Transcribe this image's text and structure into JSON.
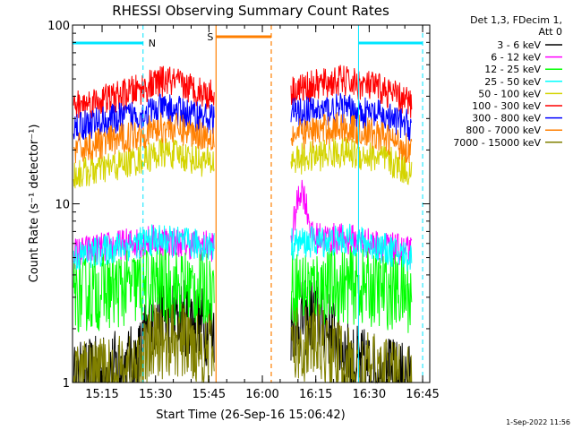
{
  "chart_data": {
    "type": "line",
    "title": "RHESSI Observing Summary Count Rates",
    "xlabel": "Start Time (26-Sep-16 15:06:42)",
    "ylabel": "Count Rate (s⁻¹ detector⁻¹)",
    "y_scale": "log",
    "ylim": [
      1,
      100
    ],
    "xlim_minutes": [
      "15:06:42",
      "16:47:00"
    ],
    "x_ticks": [
      "15:15",
      "15:30",
      "15:45",
      "16:00",
      "16:15",
      "16:30",
      "16:45"
    ],
    "y_ticks": [
      "1",
      "10",
      "100"
    ],
    "legend_header": [
      "Det 1,3, FDecim 1,",
      "Att 0"
    ],
    "legend_position": "right",
    "timestamp": "1-Sep-2022 11:56",
    "gaps": [
      [
        "15:46:30",
        "16:08:00"
      ]
    ],
    "annotations": [
      {
        "label": "N",
        "color": "#00e5ff",
        "kind": "night",
        "segments": [
          [
            "15:06:42",
            "15:26:30"
          ],
          [
            "16:27:00",
            "16:45:00"
          ]
        ]
      },
      {
        "label": "S",
        "color": "#ff7f00",
        "kind": "saa",
        "segments": [
          [
            "15:47:00",
            "16:02:30"
          ]
        ]
      }
    ],
    "series": [
      {
        "name": "3 - 6 keV",
        "color": "#000000",
        "time": [
          "15:07",
          "15:25",
          "15:30",
          "15:40",
          "15:45",
          "16:08",
          "16:15",
          "16:25",
          "16:35",
          "16:42"
        ],
        "values": [
          1.0,
          1.3,
          2.4,
          2.3,
          2.0,
          2.1,
          2.4,
          1.3,
          1.1,
          1.0
        ]
      },
      {
        "name": "6 - 12 keV",
        "color": "#ff00ff",
        "time": [
          "15:07",
          "15:30",
          "15:45",
          "16:08",
          "16:11",
          "16:14",
          "16:25",
          "16:42"
        ],
        "values": [
          5.3,
          6.3,
          5.8,
          6.0,
          12.5,
          6.5,
          6.3,
          5.3
        ]
      },
      {
        "name": "12 - 25 keV",
        "color": "#00ff00",
        "time": [
          "15:07",
          "15:30",
          "15:45",
          "16:08",
          "16:25",
          "16:42"
        ],
        "values": [
          3.1,
          3.5,
          3.3,
          3.4,
          3.5,
          3.1
        ]
      },
      {
        "name": "25 - 50 keV",
        "color": "#00ffff",
        "time": [
          "15:07",
          "15:30",
          "15:45",
          "16:08",
          "16:25",
          "16:42"
        ],
        "values": [
          5.0,
          6.3,
          5.8,
          6.0,
          6.3,
          5.0
        ]
      },
      {
        "name": "50 - 100 keV",
        "color": "#d4d400",
        "time": [
          "15:07",
          "15:20",
          "15:33",
          "15:45",
          "16:08",
          "16:22",
          "16:33",
          "16:42"
        ],
        "values": [
          14.5,
          16.5,
          19.5,
          17.0,
          17.5,
          19.5,
          18.0,
          15.0
        ]
      },
      {
        "name": "100 - 300 keV",
        "color": "#ff0000",
        "time": [
          "15:07",
          "15:20",
          "15:33",
          "15:45",
          "16:08",
          "16:22",
          "16:33",
          "16:42"
        ],
        "values": [
          35,
          40,
          49,
          41,
          43,
          49,
          44,
          36
        ]
      },
      {
        "name": "300 - 800 keV",
        "color": "#0000ff",
        "time": [
          "15:07",
          "15:20",
          "15:33",
          "15:45",
          "16:08",
          "16:22",
          "16:33",
          "16:42"
        ],
        "values": [
          27,
          30,
          34,
          30,
          32,
          34,
          31,
          27
        ]
      },
      {
        "name": "800 - 7000 keV",
        "color": "#ff7f00",
        "time": [
          "15:07",
          "15:20",
          "15:33",
          "15:45",
          "16:08",
          "16:22",
          "16:33",
          "16:42"
        ],
        "values": [
          20,
          23,
          27,
          24,
          24,
          27,
          24,
          20
        ]
      },
      {
        "name": "7000 - 15000 keV",
        "color": "#808000",
        "time": [
          "15:07",
          "15:25",
          "15:30",
          "15:40",
          "15:45",
          "16:08",
          "16:15",
          "16:25",
          "16:35",
          "16:42"
        ],
        "values": [
          1.0,
          1.2,
          1.7,
          1.7,
          1.5,
          1.6,
          1.7,
          1.2,
          1.1,
          1.0
        ]
      }
    ]
  }
}
